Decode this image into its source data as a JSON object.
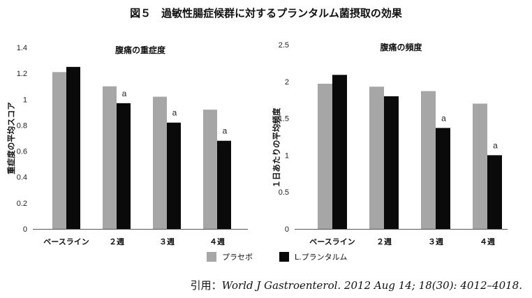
{
  "figure_title": "図５　過敏性腸症候群に対するプランタルム菌摂取の効果",
  "legend": [
    {
      "name": "プラセボ",
      "color": "#a6a6a6"
    },
    {
      "name": "L.プランタルム",
      "color": "#0a0a0a"
    }
  ],
  "citation": {
    "prefix": "引用：",
    "source": "World J Gastroenterol. 2012 Aug 14; 18(30): 4012–4018."
  },
  "chart_data": [
    {
      "type": "bar",
      "title": "腹痛の重症度",
      "ylabel": "重症度の平均スコア",
      "categories": [
        "ベースライン",
        "２週",
        "３週",
        "４週"
      ],
      "ylim": [
        0,
        1.4
      ],
      "yticks": [
        "0",
        "0.2",
        "0.4",
        "0.6",
        "0.8",
        "1",
        "1.2",
        "1.4"
      ],
      "series": [
        {
          "name": "プラセボ",
          "values": [
            1.21,
            1.1,
            1.02,
            0.92
          ]
        },
        {
          "name": "L.プランタルム",
          "values": [
            1.25,
            0.97,
            0.82,
            0.68
          ]
        }
      ],
      "annotations": [
        "",
        "a",
        "a",
        "a"
      ],
      "grid": false,
      "legend_position": "bottom"
    },
    {
      "type": "bar",
      "title": "腹痛の頻度",
      "ylabel": "１日あたりの平均頻度",
      "categories": [
        "ベースライン",
        "２週",
        "３週",
        "４週"
      ],
      "ylim": [
        0,
        2.5
      ],
      "yticks": [
        "0",
        "0.5",
        "1",
        "1.5",
        "2",
        "2.5"
      ],
      "series": [
        {
          "name": "プラセボ",
          "values": [
            1.97,
            1.93,
            1.87,
            1.7
          ]
        },
        {
          "name": "L.プランタルム",
          "values": [
            2.09,
            1.8,
            1.37,
            1.0
          ]
        }
      ],
      "annotations": [
        "",
        "",
        "a",
        "a"
      ],
      "grid": false,
      "legend_position": "bottom"
    }
  ]
}
